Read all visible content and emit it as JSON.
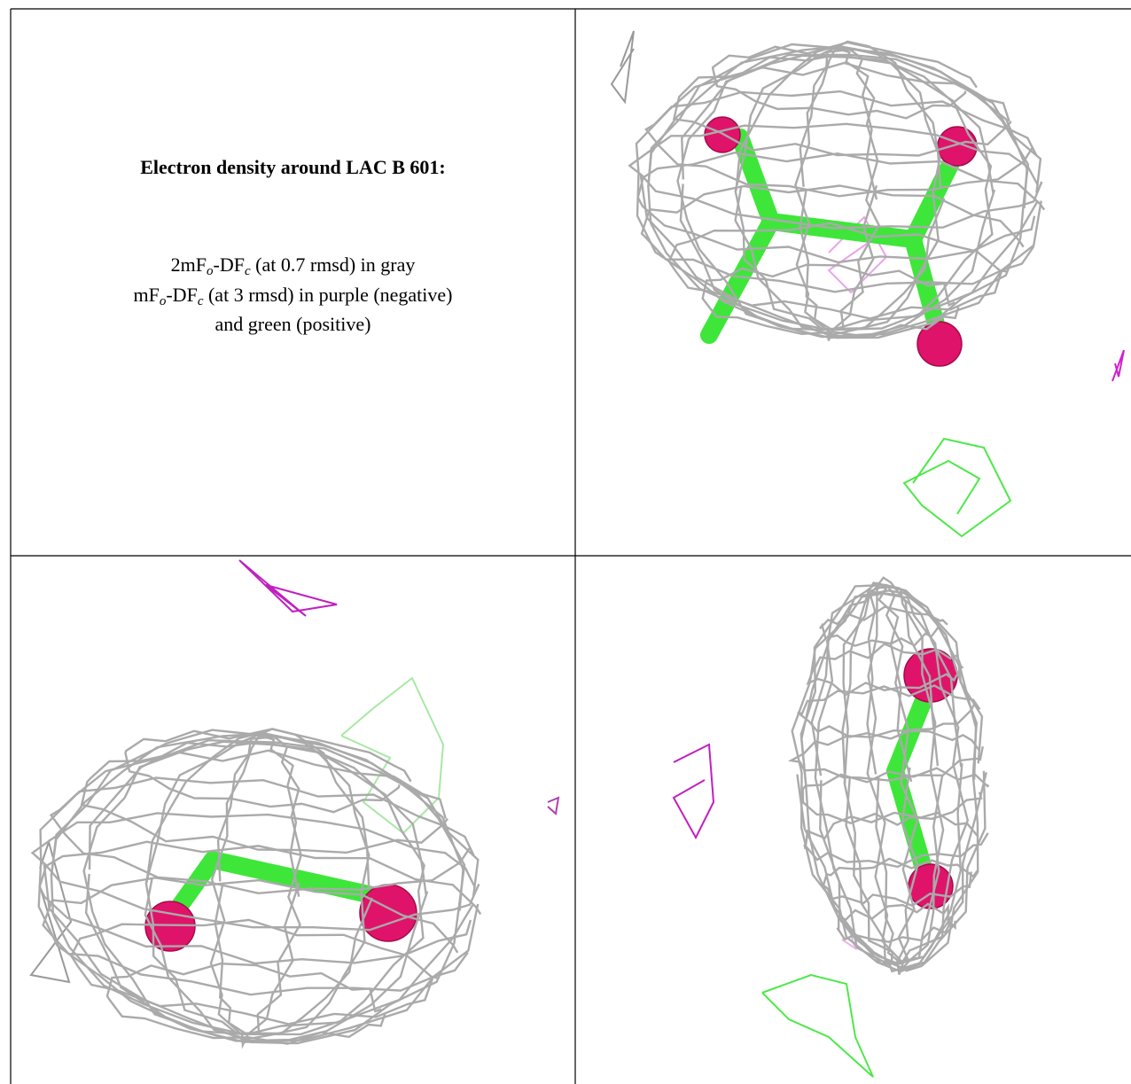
{
  "caption": {
    "title": "Electron density around LAC B 601:",
    "lines": [
      [
        "2mF",
        "o",
        "-DF",
        "c",
        " (at 0.7 rmsd) in gray"
      ],
      [
        "mF",
        "o",
        "-DF",
        "c",
        " (at 3 rmsd) in purple (negative)"
      ],
      [
        "and green (positive)"
      ]
    ]
  }
}
